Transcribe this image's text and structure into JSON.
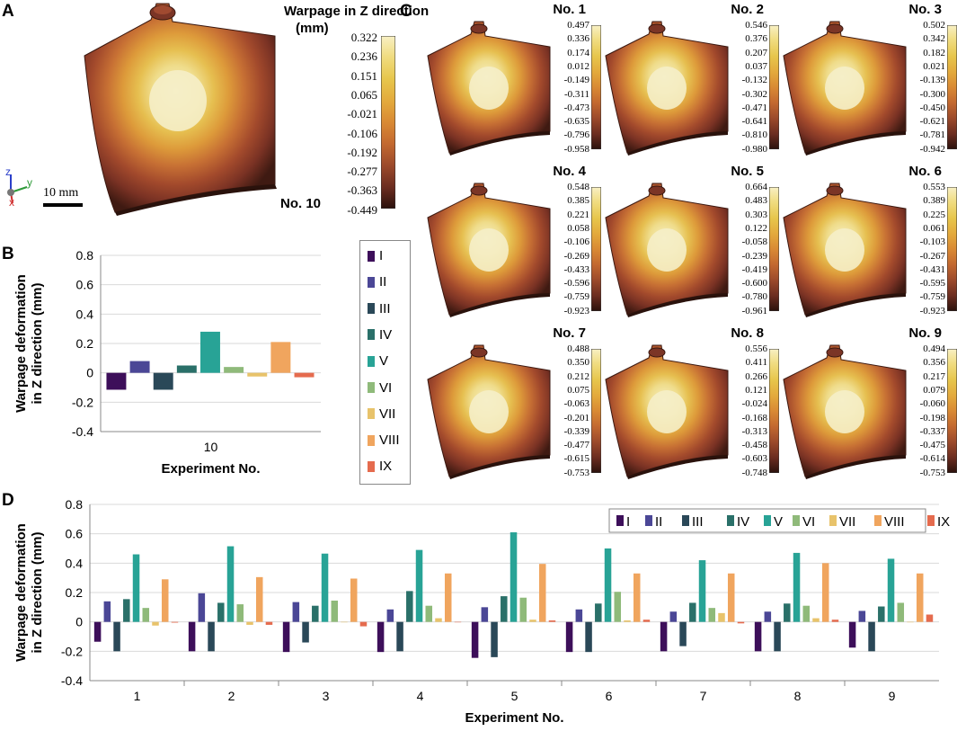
{
  "panel_letters": {
    "a": "A",
    "b": "B",
    "c": "C",
    "d": "D"
  },
  "panel_a": {
    "title_line1": "Warpage in Z direction",
    "title_line2": "(mm)",
    "scale_bar": "10 mm",
    "plate_label": "No. 10",
    "axes": {
      "z": "z",
      "y": "y",
      "x": "x"
    },
    "colorbar_values": [
      "0.322",
      "0.236",
      "0.151",
      "0.065",
      "-0.021",
      "-0.106",
      "-0.192",
      "-0.277",
      "-0.363",
      "-0.449"
    ]
  },
  "panel_c": {
    "plates": [
      {
        "label": "No. 1",
        "values": [
          "0.497",
          "0.336",
          "0.174",
          "0.012",
          "-0.149",
          "-0.311",
          "-0.473",
          "-0.635",
          "-0.796",
          "-0.958"
        ]
      },
      {
        "label": "No. 2",
        "values": [
          "0.546",
          "0.376",
          "0.207",
          "0.037",
          "-0.132",
          "-0.302",
          "-0.471",
          "-0.641",
          "-0.810",
          "-0.980"
        ]
      },
      {
        "label": "No. 3",
        "values": [
          "0.502",
          "0.342",
          "0.182",
          "0.021",
          "-0.139",
          "-0.300",
          "-0.450",
          "-0.621",
          "-0.781",
          "-0.942"
        ]
      },
      {
        "label": "No. 4",
        "values": [
          "0.548",
          "0.385",
          "0.221",
          "0.058",
          "-0.106",
          "-0.269",
          "-0.433",
          "-0.596",
          "-0.759",
          "-0.923"
        ]
      },
      {
        "label": "No. 5",
        "values": [
          "0.664",
          "0.483",
          "0.303",
          "0.122",
          "-0.058",
          "-0.239",
          "-0.419",
          "-0.600",
          "-0.780",
          "-0.961"
        ]
      },
      {
        "label": "No. 6",
        "values": [
          "0.553",
          "0.389",
          "0.225",
          "0.061",
          "-0.103",
          "-0.267",
          "-0.431",
          "-0.595",
          "-0.759",
          "-0.923"
        ]
      },
      {
        "label": "No. 7",
        "values": [
          "0.488",
          "0.350",
          "0.212",
          "0.075",
          "-0.063",
          "-0.201",
          "-0.339",
          "-0.477",
          "-0.615",
          "-0.753"
        ]
      },
      {
        "label": "No. 8",
        "values": [
          "0.556",
          "0.411",
          "0.266",
          "0.121",
          "-0.024",
          "-0.168",
          "-0.313",
          "-0.458",
          "-0.603",
          "-0.748"
        ]
      },
      {
        "label": "No. 9",
        "values": [
          "0.494",
          "0.356",
          "0.217",
          "0.079",
          "-0.060",
          "-0.198",
          "-0.337",
          "-0.475",
          "-0.614",
          "-0.753"
        ]
      }
    ]
  },
  "series_colors": [
    "#3d0f5a",
    "#4b4796",
    "#2a4858",
    "#2a7069",
    "#28a396",
    "#8fba7a",
    "#e8c36b",
    "#f0a55e",
    "#e56b4e"
  ],
  "chart_data": [
    {
      "type": "bar",
      "id": "B",
      "categories": [
        "10"
      ],
      "series": [
        {
          "name": "I",
          "values": [
            -0.115
          ]
        },
        {
          "name": "II",
          "values": [
            0.08
          ]
        },
        {
          "name": "III",
          "values": [
            -0.115
          ]
        },
        {
          "name": "IV",
          "values": [
            0.05
          ]
        },
        {
          "name": "V",
          "values": [
            0.28
          ]
        },
        {
          "name": "VI",
          "values": [
            0.04
          ]
        },
        {
          "name": "VII",
          "values": [
            -0.025
          ]
        },
        {
          "name": "VIII",
          "values": [
            0.21
          ]
        },
        {
          "name": "IX",
          "values": [
            -0.03
          ]
        }
      ],
      "xlabel": "Experiment No.",
      "ylabel_line1": "Warpage deformation",
      "ylabel_line2": "in Z direction (mm)",
      "ylim": [
        -0.4,
        0.8
      ],
      "yticks": [
        "-0.4",
        "-0.2",
        "0",
        "0.2",
        "0.4",
        "0.6",
        "0.8"
      ],
      "legend": "right"
    },
    {
      "type": "bar",
      "id": "D",
      "categories": [
        "1",
        "2",
        "3",
        "4",
        "5",
        "6",
        "7",
        "8",
        "9"
      ],
      "series": [
        {
          "name": "I",
          "values": [
            -0.135,
            -0.2,
            -0.205,
            -0.205,
            -0.245,
            -0.205,
            -0.2,
            -0.2,
            -0.175
          ]
        },
        {
          "name": "II",
          "values": [
            0.14,
            0.195,
            0.135,
            0.085,
            0.1,
            0.085,
            0.07,
            0.07,
            0.075
          ]
        },
        {
          "name": "III",
          "values": [
            -0.2,
            -0.2,
            -0.14,
            -0.2,
            -0.24,
            -0.205,
            -0.165,
            -0.2,
            -0.2
          ]
        },
        {
          "name": "IV",
          "values": [
            0.155,
            0.13,
            0.11,
            0.21,
            0.175,
            0.125,
            0.13,
            0.125,
            0.105
          ]
        },
        {
          "name": "V",
          "values": [
            0.46,
            0.515,
            0.465,
            0.49,
            0.61,
            0.5,
            0.42,
            0.47,
            0.43
          ]
        },
        {
          "name": "VI",
          "values": [
            0.095,
            0.12,
            0.145,
            0.11,
            0.165,
            0.205,
            0.095,
            0.11,
            0.13
          ]
        },
        {
          "name": "VII",
          "values": [
            -0.025,
            -0.02,
            0.0,
            0.025,
            0.015,
            0.01,
            0.06,
            0.025,
            0.0
          ]
        },
        {
          "name": "VIII",
          "values": [
            0.29,
            0.305,
            0.295,
            0.33,
            0.395,
            0.33,
            0.33,
            0.4,
            0.33
          ]
        },
        {
          "name": "IX",
          "values": [
            -0.005,
            -0.02,
            -0.03,
            0.0,
            0.01,
            0.015,
            -0.01,
            0.015,
            0.05
          ]
        }
      ],
      "xlabel": "Experiment No.",
      "ylabel_line1": "Warpage deformation",
      "ylabel_line2": "in Z direction (mm)",
      "ylim": [
        -0.4,
        0.8
      ],
      "yticks": [
        "-0.4",
        "-0.2",
        "0",
        "0.2",
        "0.4",
        "0.6",
        "0.8"
      ],
      "legend": "top-right"
    }
  ]
}
